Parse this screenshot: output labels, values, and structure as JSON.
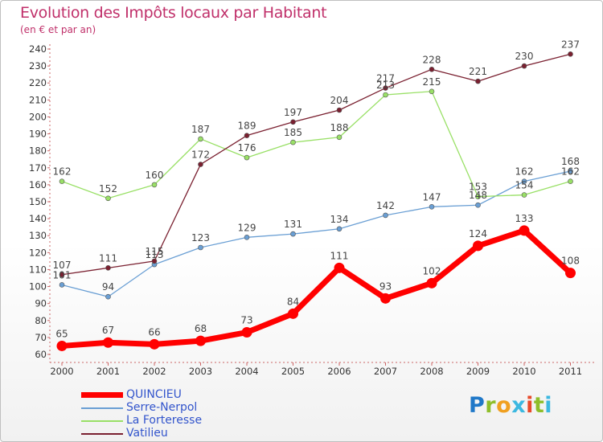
{
  "title": "Evolution des Impôts locaux par Habitant",
  "subtitle": "(en € et par an)",
  "brand": {
    "letters": [
      "P",
      "r",
      "o",
      "x",
      "i",
      "t",
      "i"
    ],
    "colors": [
      "#1f78c8",
      "#8fbe2a",
      "#f0a020",
      "#3cb8e0",
      "#e84a2a",
      "#8fbe2a",
      "#3cb8e0"
    ]
  },
  "chart_data": {
    "type": "line",
    "x": [
      "2000",
      "2001",
      "2002",
      "2003",
      "2004",
      "2005",
      "2006",
      "2007",
      "2008",
      "2009",
      "2010",
      "2011"
    ],
    "ylim": [
      60,
      240
    ],
    "yticks": [
      60,
      70,
      80,
      90,
      100,
      110,
      120,
      130,
      140,
      150,
      160,
      170,
      180,
      190,
      200,
      210,
      220,
      230,
      240
    ],
    "grid": false,
    "legend_position": "bottom-left",
    "series": [
      {
        "name": "QUINCIEU",
        "color": "#ff0000",
        "bold": true,
        "values": [
          65,
          67,
          66,
          68,
          73,
          84,
          111,
          93,
          102,
          124,
          133,
          108
        ]
      },
      {
        "name": "Serre-Nerpol",
        "color": "#6a9fd4",
        "bold": false,
        "values": [
          101,
          94,
          113,
          123,
          129,
          131,
          134,
          142,
          147,
          148,
          162,
          168
        ]
      },
      {
        "name": "La Forteresse",
        "color": "#99e066",
        "bold": false,
        "values": [
          162,
          152,
          160,
          187,
          176,
          185,
          188,
          213,
          215,
          153,
          154,
          162
        ]
      },
      {
        "name": "Vatilieu",
        "color": "#7a2030",
        "bold": false,
        "values": [
          107,
          111,
          115,
          172,
          189,
          197,
          204,
          217,
          228,
          221,
          230,
          237
        ]
      }
    ]
  }
}
